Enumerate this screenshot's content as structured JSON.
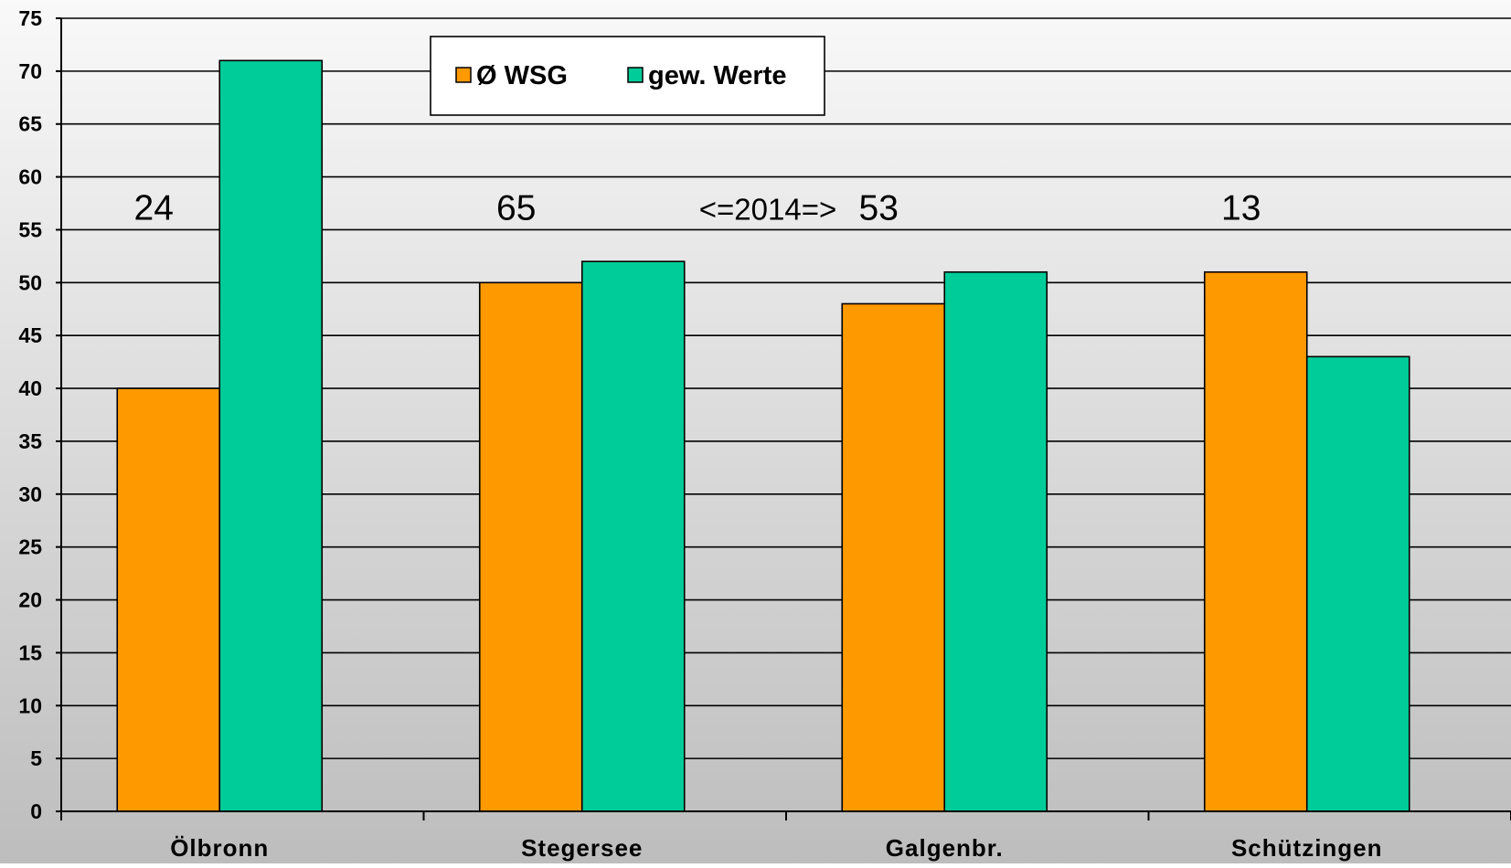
{
  "chart_data": {
    "type": "bar",
    "categories": [
      "Ölbronn",
      "Stegersee",
      "Galgenbr.",
      "Schützingen"
    ],
    "series": [
      {
        "name": "Ø WSG",
        "values": [
          40,
          50,
          48,
          51
        ],
        "color": "#FF9900"
      },
      {
        "name": "gew. Werte",
        "values": [
          71,
          52,
          51,
          43
        ],
        "color": "#00CC99"
      }
    ],
    "ylim": [
      0,
      75
    ],
    "yticks": [
      0,
      5,
      10,
      15,
      20,
      25,
      30,
      35,
      40,
      45,
      50,
      55,
      60,
      65,
      70,
      75
    ],
    "grid": true,
    "legend_position": "top-center",
    "annotations": [
      {
        "text": "24",
        "category": "Ölbronn",
        "y": 57
      },
      {
        "text": "65",
        "category": "Stegersee",
        "y": 57
      },
      {
        "text": "<=2014=>",
        "between": [
          "Stegersee",
          "Galgenbr."
        ],
        "y": 57
      },
      {
        "text": "53",
        "category": "Galgenbr.",
        "y": 57
      },
      {
        "text": "13",
        "category": "Schützingen",
        "y": 57
      }
    ]
  }
}
